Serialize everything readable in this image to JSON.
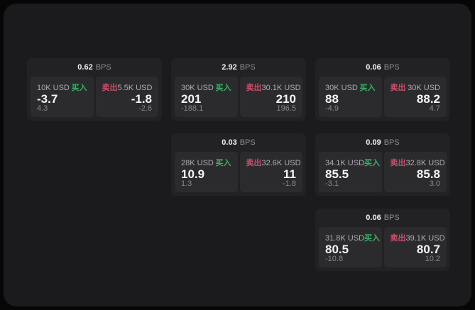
{
  "colors": {
    "buy_green": "#3cae67",
    "sell_red": "#ca4f6a",
    "panel_background": "#1b1b1d",
    "card_background": "#222225",
    "subpanel_background": "#2b2b2e"
  },
  "cards": [
    {
      "bps_value": "0.62",
      "bps_unit": "BPS",
      "buy": {
        "notional": "10K USD",
        "side_label": "买入",
        "price": "-3.7",
        "delta": "4.3"
      },
      "sell": {
        "side_label": "卖出",
        "notional": "5.5K USD",
        "price": "-1.8",
        "delta": "-2.6"
      }
    },
    {
      "bps_value": "2.92",
      "bps_unit": "BPS",
      "buy": {
        "notional": "30K USD",
        "side_label": "买入",
        "price": "201",
        "delta": "-188.1"
      },
      "sell": {
        "side_label": "卖出",
        "notional": "30.1K USD",
        "price": "210",
        "delta": "196.5"
      }
    },
    {
      "bps_value": "0.06",
      "bps_unit": "BPS",
      "buy": {
        "notional": "30K USD",
        "side_label": "买入",
        "price": "88",
        "delta": "-4.9"
      },
      "sell": {
        "side_label": "卖出",
        "notional": "30K USD",
        "price": "88.2",
        "delta": "4.7"
      }
    },
    {
      "bps_value": "0.03",
      "bps_unit": "BPS",
      "buy": {
        "notional": "28K USD",
        "side_label": "买入",
        "price": "10.9",
        "delta": "1.3"
      },
      "sell": {
        "side_label": "卖出",
        "notional": "32.6K USD",
        "price": "11",
        "delta": "-1.8"
      }
    },
    {
      "bps_value": "0.09",
      "bps_unit": "BPS",
      "buy": {
        "notional": "34.1K USD",
        "side_label": "买入",
        "price": "85.5",
        "delta": "-3.1"
      },
      "sell": {
        "side_label": "卖出",
        "notional": "32.8K USD",
        "price": "85.8",
        "delta": "3.0"
      }
    },
    {
      "bps_value": "0.06",
      "bps_unit": "BPS",
      "buy": {
        "notional": "31.8K USD",
        "side_label": "买入",
        "price": "80.5",
        "delta": "-10.8"
      },
      "sell": {
        "side_label": "卖出",
        "notional": "39.1K USD",
        "price": "80.7",
        "delta": "10.2"
      }
    }
  ]
}
